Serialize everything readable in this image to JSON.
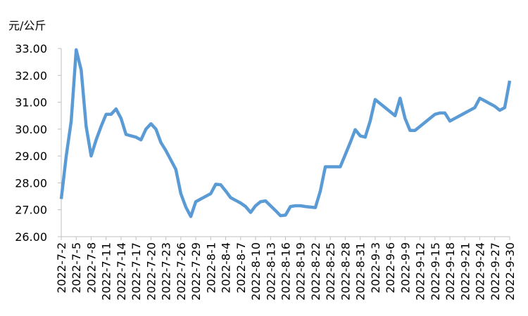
{
  "chart_data": {
    "type": "line",
    "y_label": "元/公斤",
    "categories": [
      "2022-7-2",
      null,
      null,
      "2022-7-5",
      null,
      null,
      "2022-7-8",
      null,
      null,
      "2022-7-11",
      null,
      null,
      "2022-7-14",
      null,
      null,
      "2022-7-17",
      null,
      null,
      "2022-7-20",
      null,
      null,
      "2022-7-23",
      null,
      null,
      "2022-7-26",
      null,
      null,
      "2022-7-29",
      null,
      null,
      "2022-8-1",
      null,
      null,
      "2022-8-4",
      null,
      null,
      "2022-8-7",
      null,
      null,
      "2022-8-10",
      null,
      null,
      "2022-8-13",
      null,
      null,
      "2022-8-16",
      null,
      null,
      "2022-8-19",
      null,
      null,
      "2022-8-22",
      null,
      null,
      "2022-8-25",
      null,
      null,
      "2022-8-28",
      null,
      null,
      "2022-8-31",
      null,
      null,
      "2022-9-3",
      null,
      null,
      "2022-9-6",
      null,
      null,
      "2022-9-9",
      null,
      null,
      "2022-9-12",
      null,
      null,
      "2022-9-15",
      null,
      null,
      "2022-9-18",
      null,
      null,
      "2022-9-21",
      null,
      null,
      "2022-9-24",
      null,
      null,
      "2022-9-27",
      null,
      null,
      "2022-9-30"
    ],
    "series": [
      {
        "color": "#5b9bd5",
        "values": [
          27.4,
          29.0,
          30.3,
          32.95,
          32.2,
          30.1,
          29.0,
          29.6,
          30.1,
          30.55,
          30.55,
          30.75,
          30.4,
          29.8,
          29.75,
          29.7,
          29.6,
          30.0,
          30.2,
          30.0,
          29.5,
          29.2,
          28.85,
          28.5,
          27.6,
          27.1,
          26.75,
          27.3,
          27.4,
          27.5,
          27.6,
          27.95,
          27.93,
          27.7,
          27.45,
          27.35,
          27.25,
          27.12,
          26.9,
          27.15,
          27.3,
          27.33,
          27.15,
          26.97,
          26.78,
          26.8,
          27.12,
          27.15,
          27.15,
          27.12,
          27.1,
          27.08,
          27.7,
          28.6,
          28.6,
          28.6,
          28.6,
          29.05,
          29.5,
          29.98,
          29.75,
          29.7,
          30.3,
          31.1,
          30.95,
          30.8,
          30.65,
          30.5,
          31.15,
          30.4,
          29.95,
          29.95,
          30.1,
          30.25,
          30.4,
          30.55,
          30.6,
          30.6,
          30.3,
          30.4,
          30.5,
          30.6,
          30.7,
          30.8,
          31.15,
          31.05,
          30.95,
          30.85,
          30.7,
          30.8,
          31.8
        ]
      }
    ],
    "ylim": [
      26,
      33
    ],
    "yticks": [
      {
        "value": 26,
        "label": "26.00"
      },
      {
        "value": 27,
        "label": "27.00"
      },
      {
        "value": 28,
        "label": "28.00"
      },
      {
        "value": 29,
        "label": "29.00"
      },
      {
        "value": 30,
        "label": "30.00"
      },
      {
        "value": 31,
        "label": "31.00"
      },
      {
        "value": 32,
        "label": "32.00"
      },
      {
        "value": 33,
        "label": "33.00"
      }
    ],
    "grid": false
  }
}
